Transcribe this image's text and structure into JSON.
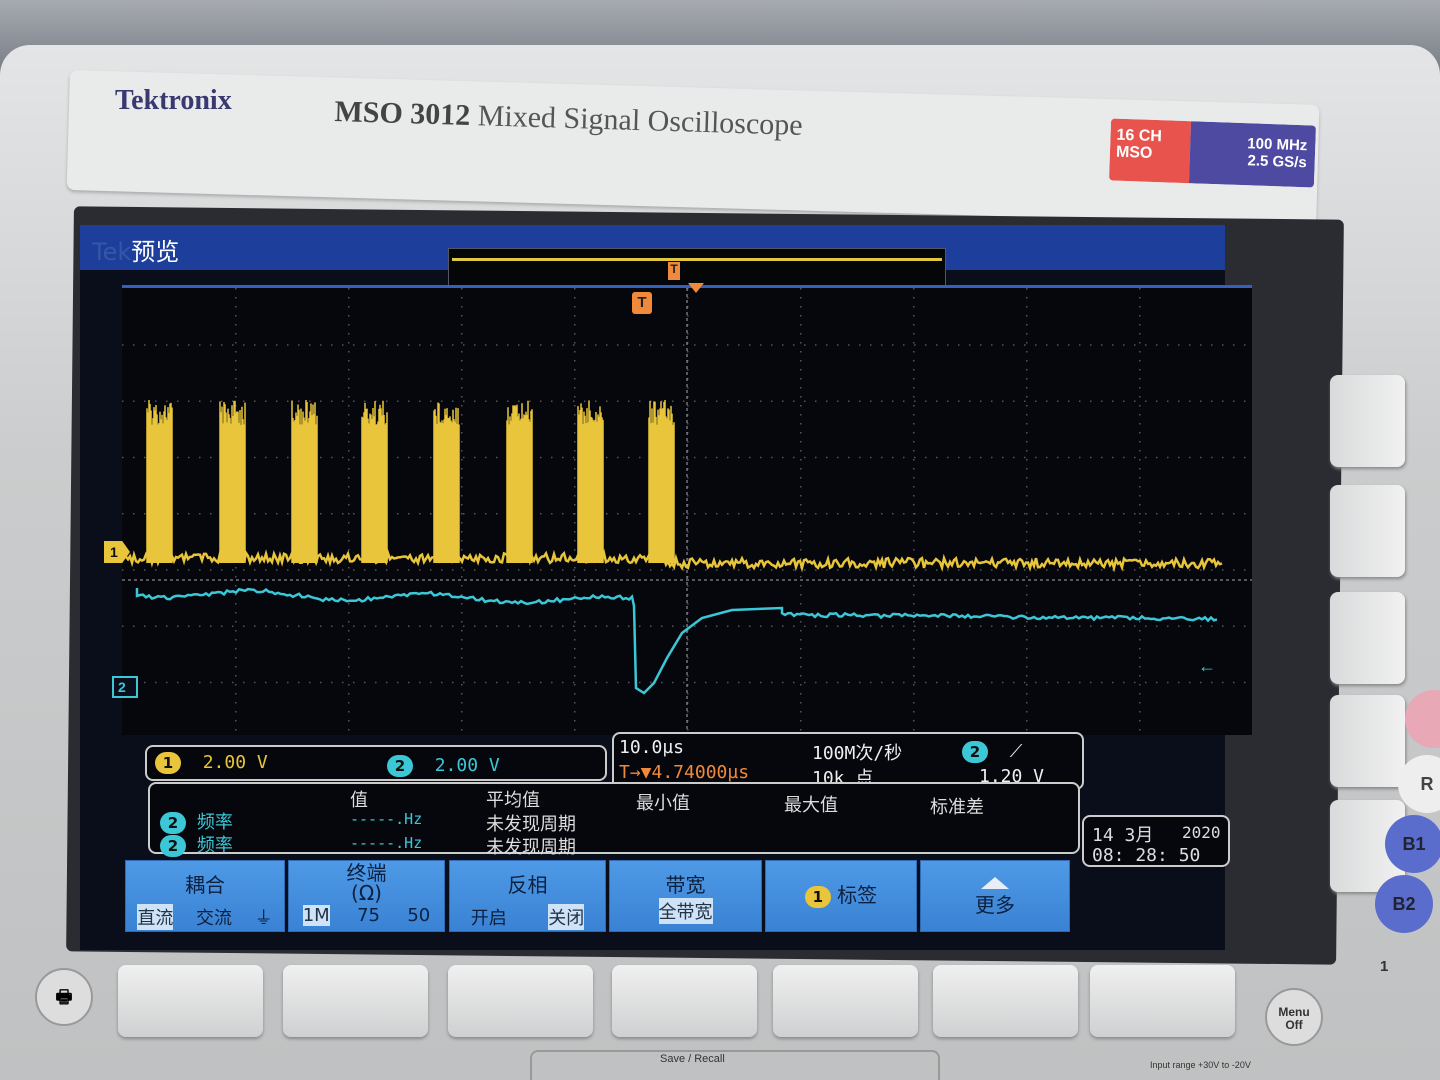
{
  "device": {
    "brand": "Tektronix",
    "model": "MSO 3012",
    "description": "Mixed Signal Oscilloscope",
    "badge_left": [
      "16 CH",
      "MSO"
    ],
    "badge_right": [
      "100 MHz",
      "2.5 GS/s"
    ]
  },
  "screen": {
    "logo": "Tek",
    "mode": "预览",
    "trigger_marker": "T",
    "ch1_marker": "1",
    "ch2_marker": "2",
    "ch1": {
      "label": "1",
      "scale": "2.00 V",
      "color": "#e8c53a"
    },
    "ch2": {
      "label": "2",
      "scale": "2.00 V",
      "color": "#3cc7d6"
    },
    "timebase": {
      "scale": "10.0µs",
      "trigger_pos": "T→▼4.74000µs",
      "sample_rate": "100M次/秒",
      "record_length": "10k 点",
      "trigger_source": "2",
      "trigger_slope": "⟋",
      "trigger_level": "1.20 V"
    },
    "measurements": {
      "headers": [
        "值",
        "平均值",
        "最小值",
        "最大值",
        "标准差"
      ],
      "rows": [
        {
          "ch": "2",
          "name": "频率",
          "value": "-----.Hz",
          "mean": "未发现周期"
        },
        {
          "ch": "2",
          "name": "频率",
          "value": "-----.Hz",
          "mean": "未发现周期"
        }
      ]
    },
    "datetime": {
      "date": "14 3月",
      "year": "2020",
      "time": "08: 28: 50"
    },
    "softkeys": [
      {
        "title": "耦合",
        "options": [
          "直流",
          "交流",
          "⏚"
        ]
      },
      {
        "title": "终端",
        "sub": "(Ω)",
        "options": [
          "1M",
          "75",
          "50"
        ]
      },
      {
        "title": "反相",
        "options": [
          "开启",
          "关闭"
        ]
      },
      {
        "title": "带宽",
        "options": [
          "全带宽"
        ]
      },
      {
        "badge": "1",
        "title": "标签"
      },
      {
        "title": "更多"
      }
    ]
  },
  "panel": {
    "menu_off": [
      "Menu",
      "Off"
    ],
    "save_recall": "Save / Recall",
    "input_range": "Input range +30V to -20V",
    "side_buttons": [
      "R",
      "B1",
      "B2"
    ],
    "label_1": "1"
  }
}
